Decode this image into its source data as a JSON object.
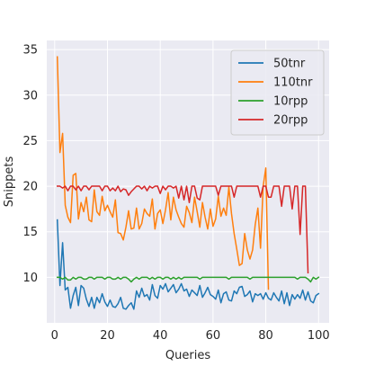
{
  "chart_data": {
    "type": "line",
    "title": "",
    "xlabel": "Queries",
    "ylabel": "Snippets",
    "xlim": [
      -3,
      104
    ],
    "ylim": [
      5,
      36
    ],
    "xticks": [
      0,
      20,
      40,
      60,
      80,
      100
    ],
    "yticks": [
      10,
      15,
      20,
      25,
      30,
      35
    ],
    "grid": true,
    "legend_position": "top-right",
    "series": [
      {
        "name": "50tnr",
        "color": "#1f77b4",
        "x": [
          1,
          2,
          3,
          4,
          5,
          6,
          7,
          8,
          9,
          10,
          11,
          12,
          13,
          14,
          15,
          16,
          17,
          18,
          19,
          20,
          21,
          22,
          23,
          24,
          25,
          26,
          27,
          28,
          29,
          30,
          31,
          32,
          33,
          34,
          35,
          36,
          37,
          38,
          39,
          40,
          41,
          42,
          43,
          44,
          45,
          46,
          47,
          48,
          49,
          50,
          51,
          52,
          53,
          54,
          55,
          56,
          57,
          58,
          59,
          60,
          61,
          62,
          63,
          64,
          65,
          66,
          67,
          68,
          69,
          70,
          71,
          72,
          73,
          74,
          75,
          76,
          77,
          78,
          79,
          80,
          81,
          82,
          83,
          84,
          85,
          86,
          87,
          88,
          89,
          90,
          91,
          92,
          93,
          94,
          95,
          96,
          97,
          98,
          99,
          100
        ],
        "values": [
          16.3,
          9.1,
          13.8,
          8.6,
          8.9,
          6.6,
          8.0,
          8.9,
          6.9,
          9.1,
          8.8,
          7.6,
          6.8,
          7.8,
          6.6,
          7.8,
          7.2,
          8.2,
          7.3,
          6.8,
          7.5,
          6.8,
          6.7,
          7.1,
          7.8,
          6.6,
          6.5,
          6.9,
          7.2,
          6.5,
          8.5,
          7.8,
          8.8,
          7.9,
          8.1,
          7.5,
          9.2,
          8.0,
          7.7,
          9.1,
          8.7,
          9.3,
          8.4,
          8.8,
          9.2,
          8.3,
          8.7,
          9.3,
          8.5,
          8.7,
          7.9,
          8.6,
          8.3,
          8.0,
          9.1,
          7.8,
          8.3,
          8.9,
          8.1,
          7.9,
          7.6,
          8.6,
          7.2,
          8.2,
          8.4,
          7.5,
          7.4,
          8.5,
          8.2,
          8.9,
          9.0,
          7.9,
          8.1,
          8.5,
          7.3,
          8.2,
          8.0,
          8.2,
          7.6,
          8.3,
          7.7,
          7.5,
          8.3,
          7.8,
          7.4,
          8.5,
          7.1,
          8.3,
          6.9,
          8.1,
          7.6,
          8.1,
          7.7,
          8.6,
          7.5,
          8.4,
          7.4,
          7.2,
          8.0,
          8.2
        ]
      },
      {
        "name": "110tnr",
        "color": "#ff7f0e",
        "x": [
          1,
          2,
          3,
          4,
          5,
          6,
          7,
          8,
          9,
          10,
          11,
          12,
          13,
          14,
          15,
          16,
          17,
          18,
          19,
          20,
          21,
          22,
          23,
          24,
          25,
          26,
          27,
          28,
          29,
          30,
          31,
          32,
          33,
          34,
          35,
          36,
          37,
          38,
          39,
          40,
          41,
          42,
          43,
          44,
          45,
          46,
          47,
          48,
          49,
          50,
          51,
          52,
          53,
          54,
          55,
          56,
          57,
          58,
          59,
          60,
          61,
          62,
          63,
          64,
          65,
          66,
          67,
          68,
          69,
          70,
          71,
          72,
          73,
          74,
          75,
          76,
          77,
          78,
          79,
          80,
          81
        ],
        "values": [
          34.2,
          23.7,
          25.8,
          17.9,
          16.6,
          16.0,
          21.2,
          21.4,
          16.4,
          18.2,
          17.2,
          18.8,
          16.3,
          16.1,
          19.6,
          17.2,
          16.8,
          18.9,
          17.3,
          17.9,
          17.2,
          16.6,
          18.5,
          14.9,
          14.8,
          14.1,
          15.5,
          17.3,
          15.3,
          15.4,
          17.6,
          15.3,
          15.9,
          17.5,
          17.0,
          16.7,
          18.6,
          15.3,
          17.0,
          17.4,
          15.9,
          17.4,
          19.3,
          16.3,
          18.8,
          17.4,
          16.6,
          15.9,
          15.5,
          17.8,
          17.1,
          16.0,
          18.8,
          17.2,
          15.5,
          18.2,
          16.6,
          15.3,
          17.5,
          15.6,
          16.4,
          18.9,
          16.7,
          17.6,
          16.8,
          19.9,
          17.0,
          14.8,
          13.1,
          11.3,
          11.5,
          14.8,
          13.0,
          12.0,
          13.0,
          15.8,
          17.6,
          13.2,
          20.0,
          22.0,
          8.7
        ]
      },
      {
        "name": "10rpp",
        "color": "#2ca02c",
        "x": [
          1,
          2,
          3,
          4,
          5,
          6,
          7,
          8,
          9,
          10,
          11,
          12,
          13,
          14,
          15,
          16,
          17,
          18,
          19,
          20,
          21,
          22,
          23,
          24,
          25,
          26,
          27,
          28,
          29,
          30,
          31,
          32,
          33,
          34,
          35,
          36,
          37,
          38,
          39,
          40,
          41,
          42,
          43,
          44,
          45,
          46,
          47,
          48,
          49,
          50,
          51,
          52,
          53,
          54,
          55,
          56,
          57,
          58,
          59,
          60,
          61,
          62,
          63,
          64,
          65,
          66,
          67,
          68,
          69,
          70,
          71,
          72,
          73,
          74,
          75,
          76,
          77,
          78,
          79,
          80,
          81,
          82,
          83,
          84,
          85,
          86,
          87,
          88,
          89,
          90,
          91,
          92,
          93,
          94,
          95,
          96,
          97,
          98,
          99,
          100
        ],
        "values": [
          10.0,
          10.0,
          9.8,
          10.0,
          9.7,
          9.7,
          10.0,
          9.8,
          10.0,
          10.0,
          9.8,
          9.8,
          10.0,
          10.0,
          9.8,
          10.0,
          10.0,
          10.0,
          9.8,
          10.0,
          10.0,
          9.8,
          9.8,
          10.0,
          9.8,
          10.0,
          10.0,
          9.8,
          9.5,
          9.8,
          10.0,
          9.8,
          10.0,
          10.0,
          10.0,
          9.8,
          10.0,
          9.8,
          10.0,
          10.0,
          9.8,
          10.0,
          10.0,
          9.8,
          10.0,
          9.8,
          10.0,
          9.8,
          10.0,
          10.0,
          10.0,
          10.0,
          10.0,
          10.0,
          9.8,
          10.0,
          10.0,
          10.0,
          10.0,
          10.0,
          10.0,
          10.0,
          10.0,
          10.0,
          10.0,
          9.8,
          10.0,
          10.0,
          10.0,
          10.0,
          10.0,
          10.0,
          10.0,
          9.8,
          10.0,
          10.0,
          10.0,
          10.0,
          10.0,
          10.0,
          10.0,
          10.0,
          10.0,
          10.0,
          10.0,
          10.0,
          10.0,
          10.0,
          10.0,
          10.0,
          10.0,
          9.8,
          10.0,
          10.0,
          10.0,
          9.8,
          9.5,
          10.0,
          9.8,
          10.0
        ]
      },
      {
        "name": "20rpp",
        "color": "#d62728",
        "x": [
          1,
          2,
          3,
          4,
          5,
          6,
          7,
          8,
          9,
          10,
          11,
          12,
          13,
          14,
          15,
          16,
          17,
          18,
          19,
          20,
          21,
          22,
          23,
          24,
          25,
          26,
          27,
          28,
          29,
          30,
          31,
          32,
          33,
          34,
          35,
          36,
          37,
          38,
          39,
          40,
          41,
          42,
          43,
          44,
          45,
          46,
          47,
          48,
          49,
          50,
          51,
          52,
          53,
          54,
          55,
          56,
          57,
          58,
          59,
          60,
          61,
          62,
          63,
          64,
          65,
          66,
          67,
          68,
          69,
          70,
          71,
          72,
          73,
          74,
          75,
          76,
          77,
          78,
          79,
          80,
          81,
          82,
          83,
          84,
          85,
          86,
          87,
          88,
          89,
          90,
          91,
          92,
          93,
          94,
          95,
          96
        ],
        "values": [
          20.0,
          20.0,
          19.8,
          20.0,
          19.5,
          20.0,
          20.0,
          19.6,
          20.0,
          19.5,
          20.0,
          20.0,
          19.6,
          20.0,
          20.0,
          20.0,
          20.0,
          19.5,
          20.0,
          20.0,
          19.5,
          19.8,
          19.5,
          20.0,
          19.4,
          19.7,
          19.6,
          19.0,
          19.4,
          19.7,
          20.0,
          20.0,
          19.7,
          20.0,
          19.5,
          20.0,
          19.8,
          20.0,
          20.0,
          19.2,
          20.0,
          19.6,
          20.0,
          20.0,
          19.8,
          20.0,
          18.7,
          20.0,
          18.5,
          20.0,
          18.2,
          20.0,
          20.0,
          18.7,
          18.5,
          20.0,
          20.0,
          20.0,
          20.0,
          20.0,
          20.0,
          19.0,
          20.0,
          20.0,
          20.0,
          20.0,
          20.0,
          18.8,
          20.0,
          20.0,
          20.0,
          20.0,
          20.0,
          20.0,
          20.0,
          20.0,
          20.0,
          18.8,
          20.0,
          20.0,
          18.8,
          18.8,
          20.0,
          20.0,
          20.0,
          17.8,
          20.0,
          20.0,
          20.0,
          17.5,
          20.0,
          20.0,
          14.7,
          20.0,
          20.0,
          10.5
        ]
      }
    ]
  }
}
